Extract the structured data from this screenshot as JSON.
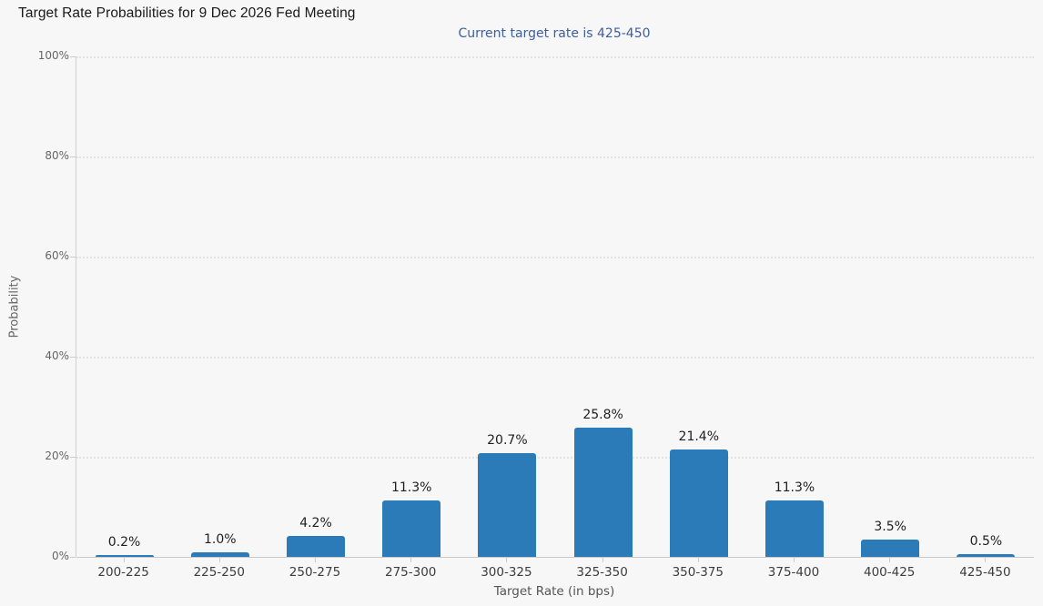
{
  "chart_data": {
    "type": "bar",
    "title": "Target Rate Probabilities for 9 Dec 2026 Fed Meeting",
    "subtitle": "Current target rate is 425-450",
    "categories": [
      "200-225",
      "225-250",
      "250-275",
      "275-300",
      "300-325",
      "325-350",
      "350-375",
      "375-400",
      "400-425",
      "425-450"
    ],
    "values": [
      0.2,
      1.0,
      4.2,
      11.3,
      20.7,
      25.8,
      21.4,
      11.3,
      3.5,
      0.5
    ],
    "value_labels": [
      "0.2%",
      "1.0%",
      "4.2%",
      "11.3%",
      "20.7%",
      "25.8%",
      "21.4%",
      "11.3%",
      "3.5%",
      "0.5%"
    ],
    "xlabel": "Target Rate (in bps)",
    "ylabel": "Probability",
    "ylim": [
      0,
      100
    ],
    "ytick_values": [
      0,
      20,
      40,
      60,
      80,
      100
    ],
    "ytick_labels": [
      "0%",
      "20%",
      "40%",
      "60%",
      "80%",
      "100%"
    ],
    "grid": "horizontal-dotted",
    "legend": "none",
    "colors": {
      "background": "#f7f7f7",
      "bar": "#2b7bb9",
      "subtitle_text": "#3c5f9f",
      "title_text": "#1a1a1a",
      "axis_text": "#666666",
      "category_text": "#3d3d3d",
      "value_label_text": "#1f1f1f",
      "gridline": "#e3e3e3",
      "axis_line": "#c9c9c9"
    }
  }
}
